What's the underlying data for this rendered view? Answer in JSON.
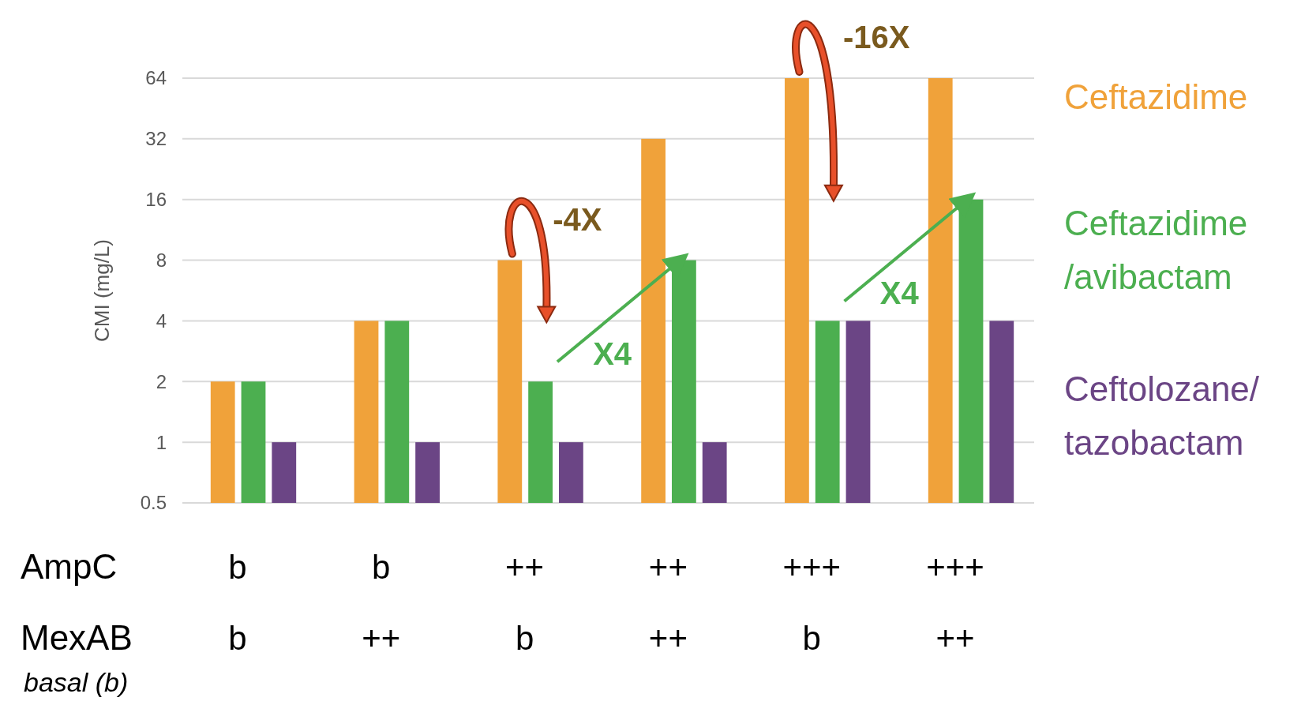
{
  "chart_data": {
    "type": "bar",
    "ylabel": "CMI (mg/L)",
    "categories": [
      "b\nb",
      "b\n++",
      "++\nb",
      "++\n++",
      "+++\nb",
      "+++\n++"
    ],
    "series": [
      {
        "name": "Ceftazidime",
        "color": "#f0a23a",
        "values": [
          2,
          4,
          8,
          32,
          64,
          64
        ]
      },
      {
        "name": "Ceftazidime\n/avibactam",
        "color": "#4caf50",
        "values": [
          2,
          4,
          2,
          8,
          4,
          16
        ]
      },
      {
        "name": "Ceftolozane/\ntazobactam",
        "color": "#6b4585",
        "values": [
          1,
          1,
          1,
          1,
          4,
          4
        ]
      }
    ],
    "log": true,
    "ylim": [
      0.5,
      64
    ],
    "yticks": [
      0.5,
      1,
      2,
      4,
      8,
      16,
      32,
      64
    ],
    "grid": "y",
    "legend": "right",
    "annotations": [
      "-4X",
      {
        "text": "X4",
        "x": "++\n++",
        "y": 8
      },
      "-16X",
      {
        "text": "X4",
        "x": "+++\n++",
        "y": 16
      },
      "AmpC",
      "MexAB",
      "basal (b)"
    ]
  }
}
